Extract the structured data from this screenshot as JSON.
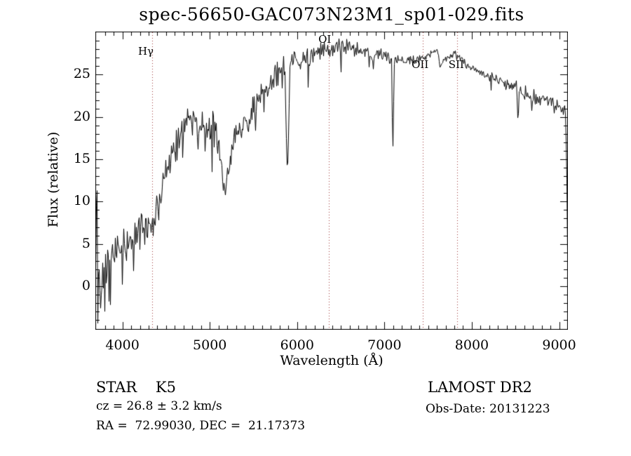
{
  "chart_data": {
    "type": "line",
    "title": "spec-56650-GAC073N23M1_sp01-029.fits",
    "xlabel": "Wavelength (Å)",
    "ylabel": "Flux (relative)",
    "xlim": [
      3690,
      9100
    ],
    "ylim": [
      -5.15,
      30.1
    ],
    "x_ticks": [
      4000,
      5000,
      6000,
      7000,
      8000,
      9000
    ],
    "x_minor_step": 100,
    "y_ticks": [
      0,
      5,
      10,
      15,
      20,
      25
    ],
    "y_minor_step": 1,
    "grid": false,
    "legend": "none",
    "line_color": "#000000",
    "frame_color": "#000000",
    "marker_line_color": "#993333",
    "line_markers": [
      {
        "label": "Hγ",
        "wavelength": 4340,
        "label_dx": -9,
        "label_y": 73
      },
      {
        "label": "OI",
        "wavelength": 6365,
        "label_dx": -6,
        "label_y": 56
      },
      {
        "label": "OII",
        "wavelength": 7440,
        "label_dx": -4,
        "label_y": 92
      },
      {
        "label": "SII",
        "wavelength": 7830,
        "label_dx": -1,
        "label_y": 92
      }
    ],
    "envelope_points_lambda_flux_noise": [
      [
        3690,
        2.0,
        3.0
      ],
      [
        3725,
        1.2,
        2.6
      ],
      [
        3760,
        1.6,
        2.5
      ],
      [
        3800,
        1.8,
        2.4
      ],
      [
        3850,
        2.8,
        2.3
      ],
      [
        3900,
        3.5,
        2.2
      ],
      [
        3950,
        4.2,
        2.0
      ],
      [
        4000,
        4.6,
        2.0
      ],
      [
        4060,
        5.1,
        1.9
      ],
      [
        4130,
        5.8,
        1.9
      ],
      [
        4200,
        6.5,
        1.8
      ],
      [
        4270,
        7.2,
        1.8
      ],
      [
        4340,
        7.8,
        1.8
      ],
      [
        4390,
        9.0,
        1.8
      ],
      [
        4440,
        10.8,
        1.7
      ],
      [
        4500,
        13.0,
        1.7
      ],
      [
        4560,
        15.5,
        1.8
      ],
      [
        4620,
        17.0,
        1.8
      ],
      [
        4680,
        18.5,
        1.7
      ],
      [
        4750,
        19.6,
        1.7
      ],
      [
        4820,
        19.6,
        1.7
      ],
      [
        4890,
        19.2,
        1.7
      ],
      [
        4960,
        18.8,
        1.7
      ],
      [
        5030,
        18.4,
        1.8
      ],
      [
        5090,
        17.6,
        1.8
      ],
      [
        5135,
        13.0,
        2.0
      ],
      [
        5168,
        10.6,
        1.4
      ],
      [
        5200,
        13.5,
        1.4
      ],
      [
        5260,
        16.5,
        1.5
      ],
      [
        5330,
        18.0,
        1.5
      ],
      [
        5400,
        19.3,
        1.5
      ],
      [
        5480,
        20.6,
        1.5
      ],
      [
        5560,
        22.0,
        1.5
      ],
      [
        5650,
        23.5,
        1.4
      ],
      [
        5740,
        24.8,
        1.3
      ],
      [
        5820,
        25.6,
        1.2
      ],
      [
        5900,
        26.1,
        1.2
      ],
      [
        6000,
        26.5,
        1.1
      ],
      [
        6100,
        27.0,
        1.0
      ],
      [
        6200,
        27.4,
        0.9
      ],
      [
        6300,
        27.8,
        0.9
      ],
      [
        6400,
        28.1,
        0.8
      ],
      [
        6500,
        28.3,
        0.8
      ],
      [
        6600,
        28.3,
        0.7
      ],
      [
        6700,
        28.0,
        0.7
      ],
      [
        6800,
        27.7,
        0.7
      ],
      [
        6870,
        27.3,
        0.6
      ],
      [
        6950,
        27.4,
        0.6
      ],
      [
        7030,
        27.2,
        0.6
      ],
      [
        7100,
        27.0,
        0.7
      ],
      [
        7180,
        26.7,
        0.6
      ],
      [
        7260,
        26.5,
        0.6
      ],
      [
        7340,
        26.6,
        0.5
      ],
      [
        7420,
        26.9,
        0.5
      ],
      [
        7500,
        27.3,
        0.4
      ],
      [
        7560,
        27.8,
        0.25
      ],
      [
        7600,
        27.9,
        0.12
      ],
      [
        7615,
        27.2,
        0.1
      ],
      [
        7632,
        25.9,
        0.1
      ],
      [
        7655,
        26.5,
        0.3
      ],
      [
        7720,
        27.1,
        0.5
      ],
      [
        7790,
        27.5,
        0.6
      ],
      [
        7860,
        27.0,
        0.5
      ],
      [
        7930,
        26.3,
        0.5
      ],
      [
        8000,
        25.8,
        0.5
      ],
      [
        8080,
        25.3,
        0.5
      ],
      [
        8160,
        25.0,
        0.6
      ],
      [
        8240,
        24.7,
        0.6
      ],
      [
        8320,
        24.4,
        0.6
      ],
      [
        8400,
        24.1,
        0.6
      ],
      [
        8480,
        23.7,
        0.7
      ],
      [
        8560,
        23.2,
        0.7
      ],
      [
        8640,
        22.7,
        0.7
      ],
      [
        8720,
        22.3,
        0.7
      ],
      [
        8800,
        22.2,
        0.7
      ],
      [
        8880,
        22.0,
        0.8
      ],
      [
        8960,
        21.7,
        0.8
      ],
      [
        9030,
        21.3,
        0.7
      ],
      [
        9070,
        20.6,
        0.5
      ],
      [
        9085,
        12.0,
        0.3
      ],
      [
        9096,
        -0.3,
        0.05
      ]
    ],
    "absorption_dips_lambda_bottom_halfwidth": [
      [
        4861,
        16.0,
        12
      ],
      [
        5885,
        13.0,
        26
      ],
      [
        6868,
        25.6,
        10
      ],
      [
        7092,
        15.8,
        14
      ],
      [
        8525,
        19.2,
        13
      ],
      [
        8683,
        20.7,
        10
      ],
      [
        8940,
        20.4,
        10
      ]
    ],
    "spikes_lambda_flux": [
      [
        3700,
        9.5
      ],
      [
        3705,
        11.3
      ],
      [
        3712,
        -4.4
      ],
      [
        3748,
        -2.6
      ],
      [
        3797,
        -3.0
      ],
      [
        3856,
        -2.2
      ],
      [
        3992,
        0.2
      ],
      [
        4120,
        1.8
      ],
      [
        5020,
        13.5
      ],
      [
        6120,
        23.5
      ],
      [
        6500,
        25.3
      ],
      [
        6820,
        25.9
      ]
    ],
    "noise_seed": 42
  },
  "footer": {
    "class_label": "STAR    K5",
    "survey": "LAMOST DR2",
    "cz": "cz = 26.8 ± 3.2 km/s",
    "obs_date": "Obs-Date: 20131223",
    "ra_dec": "RA =  72.99030, DEC =  21.17373"
  }
}
